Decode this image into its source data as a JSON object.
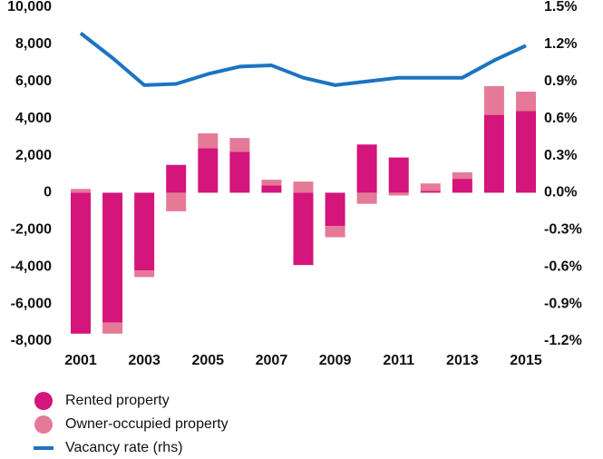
{
  "chart_data": {
    "type": "bar",
    "categories": [
      "2001",
      null,
      "2003",
      null,
      "2005",
      null,
      "2007",
      null,
      "2009",
      null,
      "2011",
      null,
      "2013",
      null,
      "2015"
    ],
    "series": [
      {
        "name": "Rented property",
        "color": "#d4157b",
        "values": [
          -7600,
          -7000,
          -4200,
          1500,
          2400,
          2200,
          400,
          -3900,
          -1800,
          2600,
          1900,
          100,
          750,
          4200,
          4400
        ]
      },
      {
        "name": "Owner-occupied property",
        "color": "#e57a98",
        "values": [
          200,
          -600,
          -350,
          -1000,
          800,
          750,
          300,
          600,
          -600,
          -600,
          -150,
          400,
          350,
          1550,
          1050
        ]
      },
      {
        "name": "Vacancy rate (rhs)",
        "color": "#1b74c1",
        "type": "line",
        "axis": "y2",
        "values": [
          1.29,
          1.09,
          0.87,
          0.88,
          0.96,
          1.02,
          1.03,
          0.93,
          0.87,
          0.9,
          0.93,
          0.93,
          0.93,
          1.07,
          1.19
        ]
      }
    ],
    "ylim": [
      -8000,
      10000
    ],
    "yticks": [
      {
        "value": 10000,
        "label": "10,000"
      },
      {
        "value": 8000,
        "label": "8,000"
      },
      {
        "value": 6000,
        "label": "6,000"
      },
      {
        "value": 4000,
        "label": "4,000"
      },
      {
        "value": 2000,
        "label": "2,000"
      },
      0,
      {
        "value": -2000,
        "label": "-2,000"
      },
      {
        "value": -4000,
        "label": "-4,000"
      },
      {
        "value": -6000,
        "label": "-6,000"
      },
      {
        "value": -8000,
        "label": "-8,000"
      }
    ],
    "y2lim": [
      -1.2,
      1.5
    ],
    "y2ticks": [
      {
        "value": 1.5,
        "label": "1.5%"
      },
      {
        "value": 1.2,
        "label": "1.2%"
      },
      {
        "value": 0.9,
        "label": "0.9%"
      },
      {
        "value": 0.6,
        "label": "0.6%"
      },
      {
        "value": 0.3,
        "label": "0.3%"
      },
      {
        "value": 0,
        "label": "0.0%"
      },
      {
        "value": -0.3,
        "label": "-0.3%"
      },
      {
        "value": -0.6,
        "label": "-0.6%"
      },
      {
        "value": -0.9,
        "label": "-0.9%"
      },
      {
        "value": -1.2,
        "label": "-1.2%"
      }
    ],
    "grid": false
  }
}
